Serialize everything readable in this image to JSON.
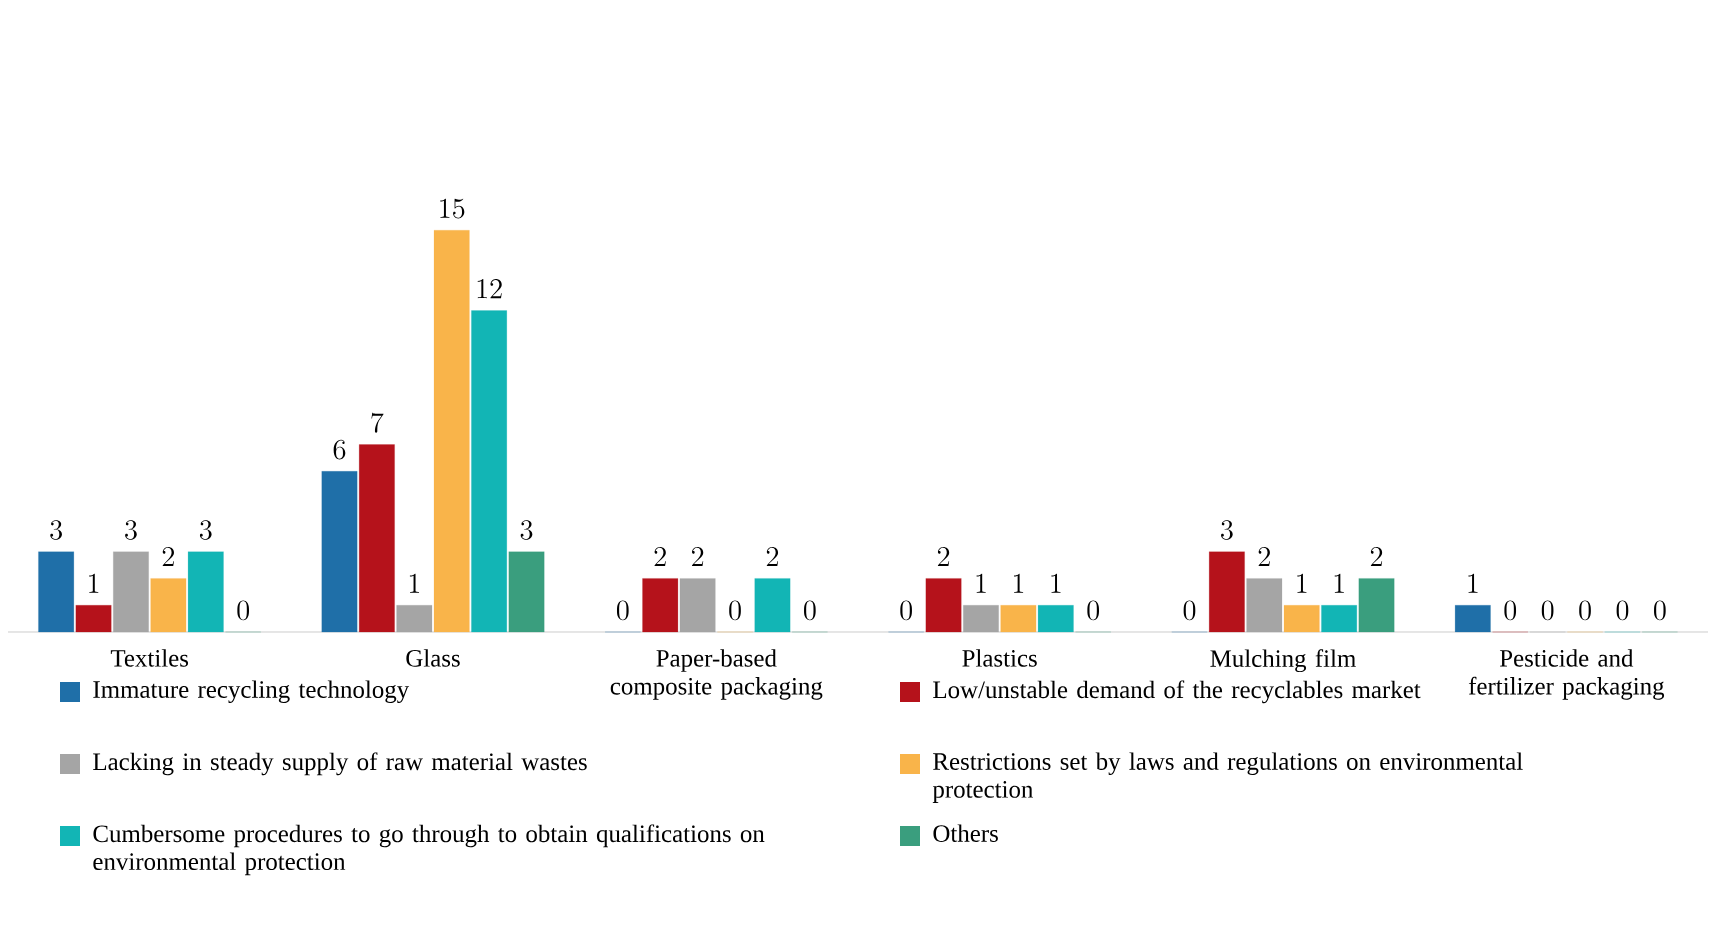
{
  "chart_data": {
    "type": "bar",
    "categories": [
      "Textiles",
      "Glass",
      "Paper-based composite packaging",
      "Plastics",
      "Mulching film",
      "Pesticide and fertilizer packaging"
    ],
    "series": [
      {
        "name": "Immature recycling technology",
        "color": "#1f6fa8",
        "values": [
          3,
          6,
          0,
          0,
          0,
          1
        ]
      },
      {
        "name": "Low/unstable demand of the recyclables market",
        "color": "#b5121b",
        "values": [
          1,
          7,
          2,
          2,
          3,
          0
        ]
      },
      {
        "name": "Lacking in steady supply of raw material wastes",
        "color": "#a5a5a5",
        "values": [
          3,
          1,
          2,
          1,
          2,
          0
        ]
      },
      {
        "name": "Restrictions set by laws and regulations on environmental protection",
        "color": "#f9b44a",
        "values": [
          2,
          15,
          0,
          1,
          1,
          0
        ]
      },
      {
        "name": "Cumbersome procedures to go through to obtain qualifications on environmental protection",
        "color": "#12b5b5",
        "values": [
          3,
          12,
          2,
          1,
          1,
          0
        ]
      },
      {
        "name": "Others",
        "color": "#3a9e7e",
        "values": [
          0,
          3,
          0,
          0,
          2,
          0
        ]
      }
    ],
    "data_labels": true,
    "legend": "bottom"
  }
}
